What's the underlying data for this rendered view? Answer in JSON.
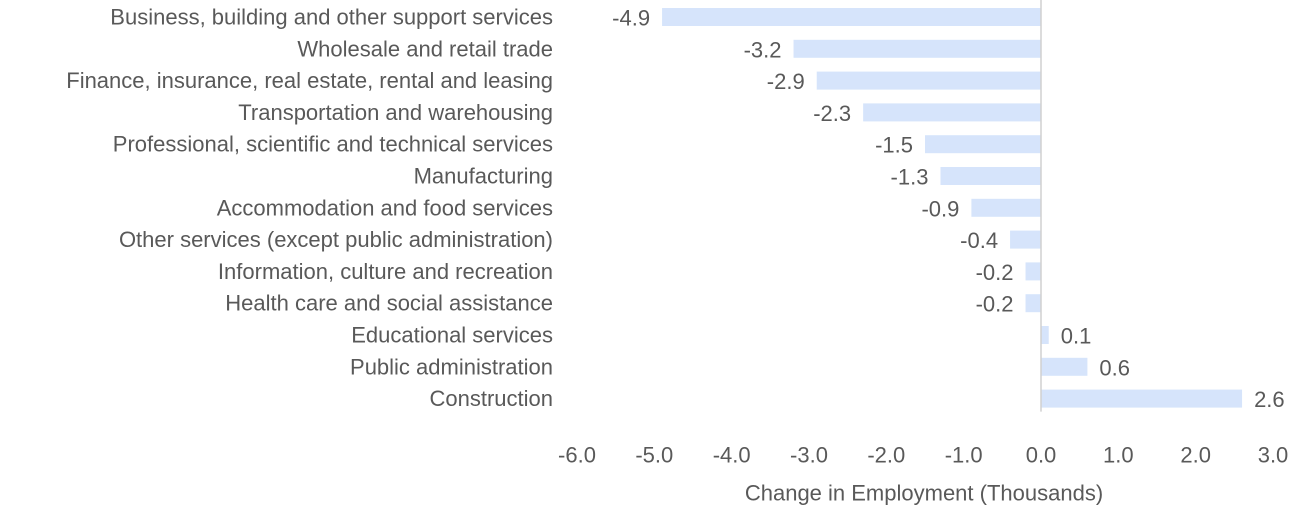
{
  "chart_data": {
    "type": "bar",
    "orientation": "horizontal",
    "categories": [
      "Business, building and other support services",
      "Wholesale and retail trade",
      "Finance, insurance, real estate, rental and leasing",
      "Transportation and warehousing",
      "Professional, scientific and technical services",
      "Manufacturing",
      "Accommodation and food services",
      "Other services (except public administration)",
      "Information, culture and recreation",
      "Health care and social assistance",
      "Educational services",
      "Public administration",
      "Construction"
    ],
    "values": [
      -4.9,
      -3.2,
      -2.9,
      -2.3,
      -1.5,
      -1.3,
      -0.9,
      -0.4,
      -0.2,
      -0.2,
      0.1,
      0.6,
      2.6
    ],
    "value_labels": [
      "-4.9",
      "-3.2",
      "-2.9",
      "-2.3",
      "-1.5",
      "-1.3",
      "-0.9",
      "-0.4",
      "-0.2",
      "-0.2",
      "0.1",
      "0.6",
      "2.6"
    ],
    "xlabel": "Change in Employment (Thousands)",
    "xlim": [
      -6,
      3
    ],
    "x_ticks": [
      -6,
      -5,
      -4,
      -3,
      -2,
      -1,
      0,
      1,
      2,
      3
    ],
    "x_tick_labels": [
      "-6.0",
      "-5.0",
      "-4.0",
      "-3.0",
      "-2.0",
      "-1.0",
      "0.0",
      "1.0",
      "2.0",
      "3.0"
    ],
    "grid": false,
    "legend": "none",
    "colors": {
      "bar": "#d6e4fb",
      "zero_line": "#d0d0d0",
      "text": "#595959"
    }
  }
}
